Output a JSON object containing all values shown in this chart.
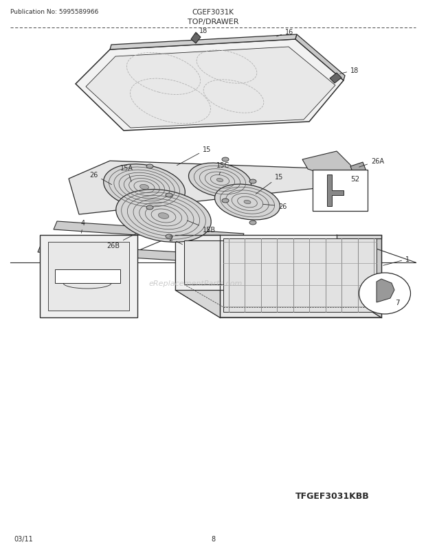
{
  "title_center": "CGEF3031K",
  "title_sub": "TOP/DRAWER",
  "pub_no": "Publication No: 5995589966",
  "date": "03/11",
  "page": "8",
  "watermark": "eReplacementParts.com",
  "model_label": "TFGEF3031KBB",
  "bg_color": "#ffffff",
  "line_color": "#2a2a2a",
  "text_color": "#2a2a2a"
}
